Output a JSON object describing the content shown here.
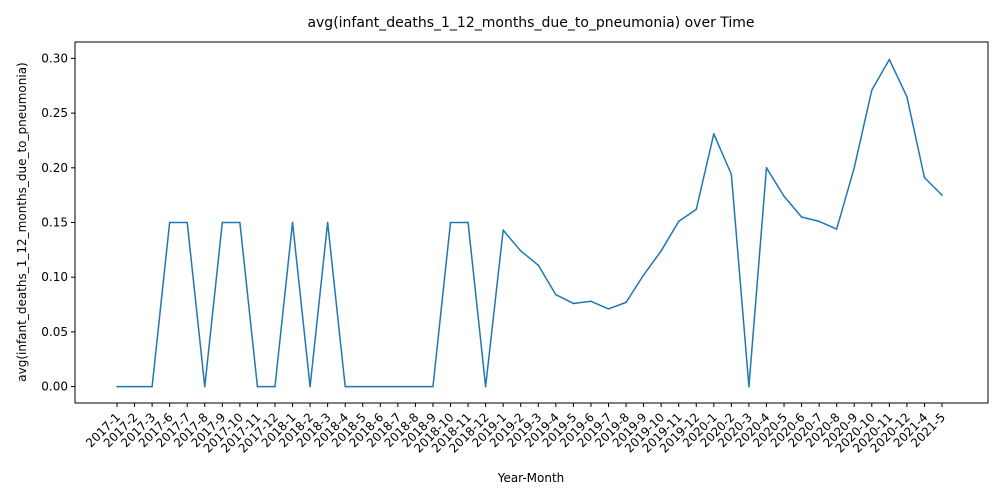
{
  "chart_data": {
    "type": "line",
    "title": "avg(infant_deaths_1_12_months_due_to_pneumonia) over Time",
    "xlabel": "Year-Month",
    "ylabel": "avg(infant_deaths_1_12_months_due_to_pneumonia)",
    "ylim": [
      -0.015,
      0.315
    ],
    "y_ticks": [
      "0.00",
      "0.05",
      "0.10",
      "0.15",
      "0.20",
      "0.25",
      "0.30"
    ],
    "grid": false,
    "legend": "none",
    "line_color": "#1f77b4",
    "categories": [
      "2017-1",
      "2017-2",
      "2017-3",
      "2017-6",
      "2017-7",
      "2017-8",
      "2017-9",
      "2017-10",
      "2017-11",
      "2017-12",
      "2018-1",
      "2018-2",
      "2018-3",
      "2018-4",
      "2018-5",
      "2018-6",
      "2018-7",
      "2018-8",
      "2018-9",
      "2018-10",
      "2018-11",
      "2018-12",
      "2019-1",
      "2019-2",
      "2019-3",
      "2019-4",
      "2019-5",
      "2019-6",
      "2019-7",
      "2019-8",
      "2019-9",
      "2019-10",
      "2019-11",
      "2019-12",
      "2020-1",
      "2020-2",
      "2020-3",
      "2020-4",
      "2020-5",
      "2020-6",
      "2020-7",
      "2020-8",
      "2020-9",
      "2020-10",
      "2020-11",
      "2020-12",
      "2021-4",
      "2021-5"
    ],
    "values": [
      0.0,
      0.0,
      0.0,
      0.15,
      0.15,
      0.0,
      0.15,
      0.15,
      0.0,
      0.0,
      0.15,
      0.0,
      0.15,
      0.0,
      0.0,
      0.0,
      0.0,
      0.0,
      0.0,
      0.15,
      0.15,
      0.0,
      0.143,
      0.124,
      0.111,
      0.084,
      0.076,
      0.078,
      0.071,
      0.077,
      0.102,
      0.124,
      0.151,
      0.162,
      0.231,
      0.194,
      0.0,
      0.2,
      0.174,
      0.155,
      0.151,
      0.144,
      0.2,
      0.271,
      0.299,
      0.265,
      0.191,
      0.175
    ]
  }
}
